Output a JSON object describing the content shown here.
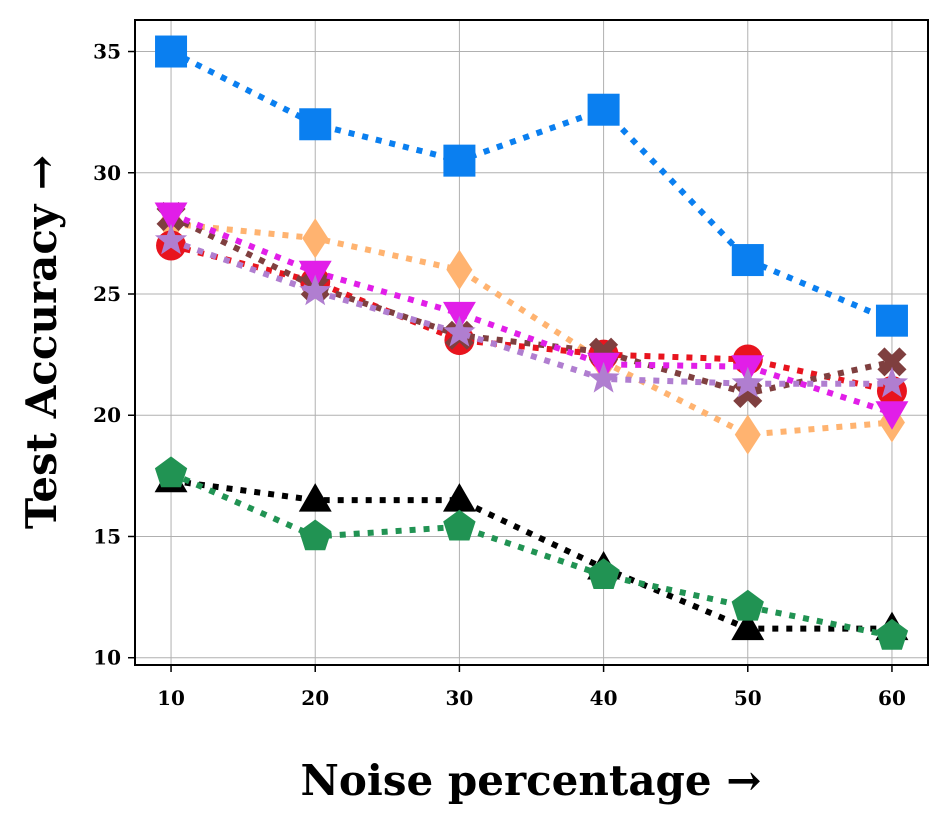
{
  "chart_data": {
    "type": "line",
    "title": "",
    "xlabel": "Noise percentage →",
    "ylabel": "Test Accuracy →",
    "x": [
      10,
      20,
      30,
      40,
      50,
      60
    ],
    "xticks": [
      10,
      20,
      30,
      40,
      50,
      60
    ],
    "yticks": [
      10,
      15,
      20,
      25,
      30,
      35
    ],
    "xlim": [
      7.5,
      62.5
    ],
    "ylim": [
      9.7,
      36.3
    ],
    "grid": true,
    "legend": "none",
    "series": [
      {
        "name": "blue-square",
        "color": "#0a7ff0",
        "marker": "square",
        "values": [
          35.0,
          32.0,
          30.5,
          32.6,
          26.4,
          23.9
        ]
      },
      {
        "name": "orange-diamond",
        "color": "#ffb370",
        "marker": "diamond",
        "values": [
          27.9,
          27.3,
          26.0,
          22.2,
          19.2,
          19.7
        ]
      },
      {
        "name": "red-circle",
        "color": "#e8141e",
        "marker": "circle",
        "values": [
          27.0,
          25.5,
          23.1,
          22.5,
          22.3,
          21.0
        ]
      },
      {
        "name": "brown-x",
        "color": "#7f3f3f",
        "marker": "x",
        "values": [
          28.2,
          25.3,
          23.3,
          22.6,
          20.9,
          22.2
        ]
      },
      {
        "name": "magenta-triangle-down",
        "color": "#e11ee8",
        "marker": "triangle-down",
        "values": [
          28.3,
          25.9,
          24.2,
          22.1,
          22.0,
          20.1
        ]
      },
      {
        "name": "purple-star",
        "color": "#b07ed0",
        "marker": "star",
        "values": [
          27.2,
          25.1,
          23.4,
          21.5,
          21.3,
          21.3
        ]
      },
      {
        "name": "black-triangle-up",
        "color": "#000000",
        "marker": "triangle-up",
        "values": [
          17.3,
          16.5,
          16.5,
          13.7,
          11.2,
          11.2
        ]
      },
      {
        "name": "green-pentagon",
        "color": "#219353",
        "marker": "pentagon",
        "values": [
          17.6,
          15.0,
          15.4,
          13.4,
          12.1,
          10.9
        ]
      }
    ]
  }
}
